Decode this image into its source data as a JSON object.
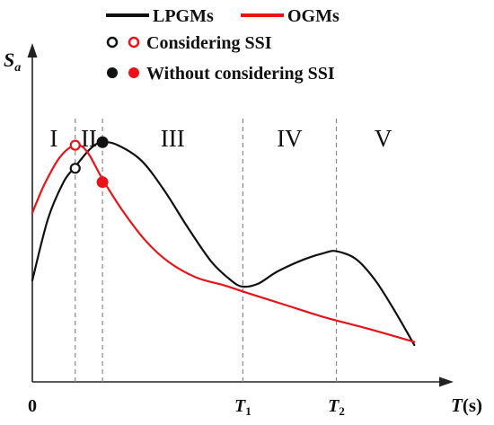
{
  "chart_data": {
    "type": "line",
    "ylabel_main": "S",
    "ylabel_sub": "a",
    "xlabel_main": "T",
    "xlabel_unit": "(s)",
    "x_ticks": [
      {
        "id": "origin",
        "main": "0",
        "sub": "",
        "x": 0
      },
      {
        "id": "t1",
        "main": "T",
        "sub": "1",
        "x": 5.4
      },
      {
        "id": "t2",
        "main": "T",
        "sub": "2",
        "x": 7.8
      }
    ],
    "xlim": [
      0,
      10
    ],
    "ylim": [
      0,
      10
    ],
    "boundaries": [
      1.1,
      1.8,
      5.4,
      7.8
    ],
    "regions": [
      "I",
      "II",
      "III",
      "IV",
      "V"
    ],
    "region_centers": [
      0.55,
      1.45,
      3.6,
      6.6,
      9.0
    ],
    "legend": {
      "lpgms": "LPGMs",
      "ogms": "OGMs",
      "considering": "Considering SSI",
      "without": "Without considering SSI"
    },
    "colors": {
      "lpgms": "#111111",
      "ogms": "#e8141a"
    },
    "series": [
      {
        "name": "LPGMs",
        "color": "#111111",
        "points": [
          [
            0,
            3.3
          ],
          [
            0.4,
            5.3
          ],
          [
            0.8,
            6.5
          ],
          [
            1.1,
            7.0
          ],
          [
            1.5,
            7.6
          ],
          [
            1.8,
            7.8
          ],
          [
            2.2,
            7.7
          ],
          [
            2.8,
            7.2
          ],
          [
            3.4,
            6.2
          ],
          [
            4.0,
            5.0
          ],
          [
            4.6,
            3.9
          ],
          [
            5.1,
            3.3
          ],
          [
            5.4,
            3.1
          ],
          [
            5.8,
            3.2
          ],
          [
            6.3,
            3.6
          ],
          [
            7.0,
            4.0
          ],
          [
            7.5,
            4.2
          ],
          [
            7.8,
            4.25
          ],
          [
            8.3,
            4.0
          ],
          [
            8.8,
            3.3
          ],
          [
            9.3,
            2.3
          ],
          [
            9.8,
            1.2
          ]
        ]
      },
      {
        "name": "OGMs",
        "color": "#e8141a",
        "points": [
          [
            0,
            5.5
          ],
          [
            0.3,
            6.4
          ],
          [
            0.7,
            7.3
          ],
          [
            1.1,
            7.7
          ],
          [
            1.4,
            7.5
          ],
          [
            1.8,
            6.6
          ],
          [
            2.3,
            5.6
          ],
          [
            2.9,
            4.6
          ],
          [
            3.5,
            3.9
          ],
          [
            4.2,
            3.4
          ],
          [
            4.9,
            3.15
          ],
          [
            5.5,
            2.9
          ],
          [
            6.5,
            2.5
          ],
          [
            7.5,
            2.1
          ],
          [
            8.7,
            1.7
          ],
          [
            9.8,
            1.3
          ]
        ]
      }
    ],
    "markers": [
      {
        "name": "LPGMs-considering",
        "x": 1.1,
        "y": 6.95,
        "fill": "none",
        "stroke": "#111111"
      },
      {
        "name": "OGMs-considering",
        "x": 1.1,
        "y": 7.7,
        "fill": "none",
        "stroke": "#e8141a"
      },
      {
        "name": "LPGMs-without",
        "x": 1.8,
        "y": 7.8,
        "fill": "#111111",
        "stroke": "#111111"
      },
      {
        "name": "OGMs-without",
        "x": 1.8,
        "y": 6.5,
        "fill": "#e8141a",
        "stroke": "#e8141a"
      }
    ]
  }
}
